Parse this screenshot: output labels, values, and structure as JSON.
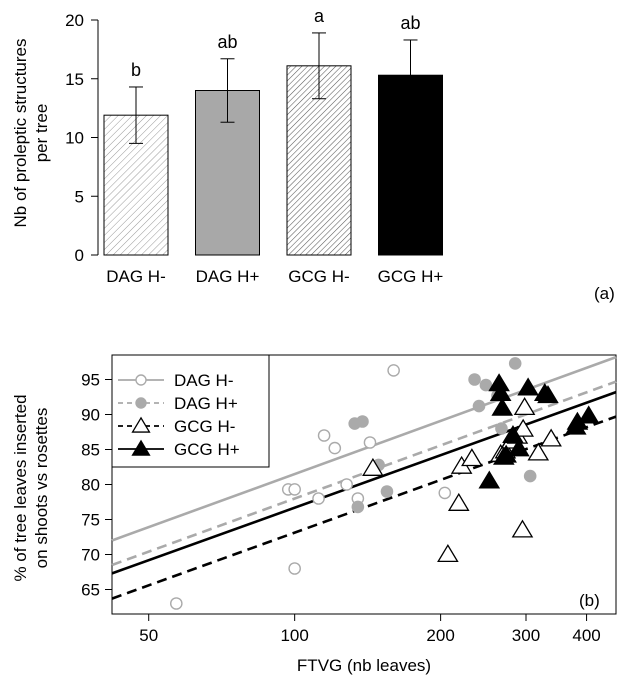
{
  "chart_data": [
    {
      "type": "bar",
      "panel_label": "(a)",
      "ylabel_lines": [
        "Nb of proleptic structures",
        "per tree"
      ],
      "ylim": [
        0,
        20
      ],
      "yticks": [
        "0",
        "5",
        "10",
        "15",
        "20"
      ],
      "categories": [
        "DAG H-",
        "DAG H+",
        "GCG H-",
        "GCG H+"
      ],
      "values": [
        11.9,
        14.0,
        16.1,
        15.3
      ],
      "error_bars": [
        2.4,
        2.7,
        2.8,
        3.0
      ],
      "significance_letters": [
        "b",
        "ab",
        "a",
        "ab"
      ],
      "fills": [
        "hatch-light",
        "solid-gray",
        "hatch-dense",
        "solid-black"
      ]
    },
    {
      "type": "scatter",
      "panel_label": "(b)",
      "xlabel": "FTVG (nb leaves)",
      "ylabel_lines": [
        "% of tree leaves inserted",
        "on shoots vs rosettes"
      ],
      "x_scale": "log",
      "xlim": [
        42,
        460
      ],
      "ylim": [
        61.5,
        98.5
      ],
      "xticks": [
        "50",
        "100",
        "200",
        "300",
        "400"
      ],
      "yticks": [
        "65",
        "70",
        "75",
        "80",
        "85",
        "90",
        "95"
      ],
      "legend_position": "top-left",
      "series": [
        {
          "name": "DAG H-",
          "marker": "open-circle",
          "color": "#aaaaaa",
          "line": "solid",
          "fit": [
            [
              42,
              72.0
            ],
            [
              460,
              98.2
            ]
          ],
          "points": [
            [
              57,
              63
            ],
            [
              97,
              79.3
            ],
            [
              100,
              79.3
            ],
            [
              100,
              68
            ],
            [
              112,
              78
            ],
            [
              115,
              87
            ],
            [
              121,
              85.2
            ],
            [
              128,
              80
            ],
            [
              135,
              78
            ],
            [
              143,
              86
            ],
            [
              160,
              96.3
            ],
            [
              204,
              78.8
            ]
          ]
        },
        {
          "name": "DAG H+",
          "marker": "filled-circle",
          "color": "#aaaaaa",
          "line": "dashed",
          "fit": [
            [
              42,
              68.5
            ],
            [
              460,
              94.7
            ]
          ],
          "points": [
            [
              133,
              88.7
            ],
            [
              138,
              89
            ],
            [
              135,
              76.8
            ],
            [
              149,
              82.8
            ],
            [
              155,
              79
            ],
            [
              235,
              95
            ],
            [
              240,
              91.2
            ],
            [
              248,
              94.2
            ],
            [
              262,
              92.7
            ],
            [
              267,
              88
            ],
            [
              285,
              97.3
            ],
            [
              306,
              81.2
            ]
          ]
        },
        {
          "name": "GCG H-",
          "marker": "open-triangle",
          "color": "#000000",
          "line": "dashed",
          "fit": [
            [
              42,
              63.7
            ],
            [
              460,
              89.7
            ]
          ],
          "points": [
            [
              145,
              82.3
            ],
            [
              207,
              70
            ],
            [
              218,
              77.3
            ],
            [
              221,
              82.6
            ],
            [
              232,
              83.7
            ],
            [
              266,
              84.3
            ],
            [
              272,
              84.8
            ],
            [
              280,
              86.2
            ],
            [
              288,
              86.9
            ],
            [
              295,
              73.5
            ],
            [
              296,
              87.9
            ],
            [
              298,
              91
            ],
            [
              318,
              84.5
            ],
            [
              338,
              86.5
            ]
          ]
        },
        {
          "name": "GCG H+",
          "marker": "filled-triangle",
          "color": "#000000",
          "line": "solid",
          "fit": [
            [
              42,
              67.3
            ],
            [
              460,
              93.2
            ]
          ],
          "points": [
            [
              252,
              80.5
            ],
            [
              264,
              94.4
            ],
            [
              266,
              93
            ],
            [
              268,
              90.9
            ],
            [
              270,
              83.9
            ],
            [
              273,
              84.2
            ],
            [
              282,
              87
            ],
            [
              290,
              85.1
            ],
            [
              303,
              93.8
            ],
            [
              328,
              93
            ],
            [
              333,
              92.7
            ],
            [
              380,
              88.2
            ],
            [
              383,
              88.9
            ],
            [
              404,
              89.8
            ]
          ]
        }
      ]
    }
  ]
}
